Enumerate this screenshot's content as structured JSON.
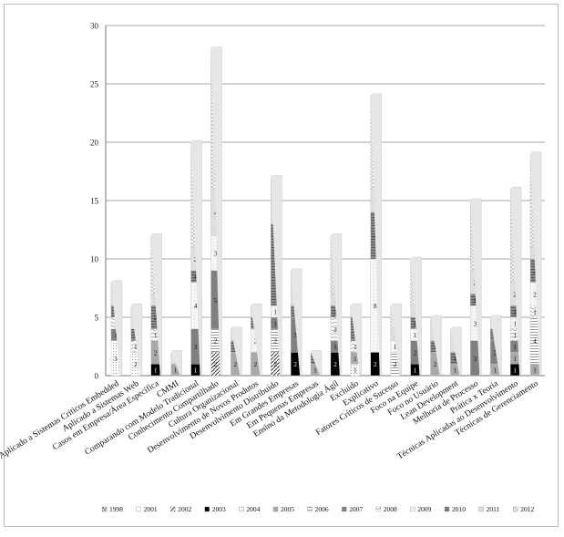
{
  "chart_data": {
    "type": "bar",
    "stacked": true,
    "title": "",
    "xlabel": "",
    "ylabel": "",
    "ylim": [
      0,
      30
    ],
    "yticks": [
      0,
      5,
      10,
      15,
      20,
      25,
      30
    ],
    "grid": true,
    "legend_position": "bottom",
    "categories": [
      "Aplicado a Sistemas Críticos Embedded",
      "Aplicado a Sistemas Web",
      "Casos em Empresa/Área Específica",
      "CMMI",
      "Comparando com Modelo Tradicional",
      "Conhecimento Compartilhado",
      "Cultura Organizacional",
      "Desenvolvimento de Novos Produtos",
      "Desenvolvimento Distribuído",
      "Em Grandes Empresas",
      "Em Pequenas Empresas",
      "Ensino da Metodologia Ágil",
      "Excluído",
      "Explicativo",
      "Fatores Críticos de Sucesso",
      "Foco na Equipe",
      "Foco no Usuário",
      "Lean Development",
      "Melhoria de Processo",
      "Prática x Teoria",
      "Técnicas Aplicadas ao Desenvolvimento",
      "Técnicas de Gerenciamento"
    ],
    "series": [
      {
        "name": "1998",
        "color": "#8c8c8c",
        "values": [
          0,
          0,
          0,
          0,
          0,
          0,
          0,
          0,
          0,
          0,
          0,
          0,
          0,
          0,
          0,
          0,
          0,
          0,
          0,
          0,
          0,
          0
        ]
      },
      {
        "name": "2001",
        "color": "#f2f2f2",
        "values": [
          0,
          0,
          0,
          0,
          0,
          0,
          0,
          0,
          0,
          0,
          0,
          0,
          0,
          0,
          0,
          0,
          0,
          0,
          0,
          0,
          0,
          0
        ]
      },
      {
        "name": "2002",
        "color": "#f0f0f0",
        "values": [
          0,
          0,
          0,
          0,
          0,
          2,
          0,
          0,
          2,
          0,
          0,
          0,
          0,
          0,
          0,
          0,
          0,
          0,
          0,
          0,
          0,
          0
        ]
      },
      {
        "name": "2003",
        "color": "#000000",
        "values": [
          0,
          0,
          1,
          0,
          1,
          0,
          0,
          0,
          0,
          2,
          0,
          2,
          0,
          2,
          0,
          1,
          0,
          0,
          0,
          0,
          1,
          0
        ]
      },
      {
        "name": "2004",
        "color": "#fafafa",
        "values": [
          3,
          2,
          0,
          0,
          0,
          0,
          0,
          0,
          0,
          0,
          0,
          0,
          1,
          0,
          0,
          0,
          0,
          0,
          0,
          0,
          0,
          0
        ]
      },
      {
        "name": "2005",
        "color": "#a6a6a6",
        "values": [
          0,
          0,
          2,
          1,
          0,
          0,
          2,
          2,
          0,
          0,
          1,
          0,
          1,
          0,
          0,
          0,
          2,
          1,
          0,
          1,
          1,
          1
        ]
      },
      {
        "name": "2006",
        "color": "#e0e0e0",
        "values": [
          0,
          0,
          0,
          0,
          0,
          2,
          0,
          0,
          2,
          0,
          0,
          0,
          0,
          0,
          2,
          0,
          0,
          0,
          0,
          0,
          0,
          4
        ]
      },
      {
        "name": "2007",
        "color": "#7f7f7f",
        "values": [
          1,
          0,
          0,
          0,
          3,
          5,
          0,
          0,
          1,
          3,
          0,
          1,
          0,
          0,
          0,
          2,
          0,
          0,
          3,
          2,
          1,
          0
        ]
      },
      {
        "name": "2008",
        "color": "#e8e8e8",
        "values": [
          1,
          1,
          1,
          0,
          0,
          0,
          0,
          0,
          0,
          0,
          0,
          2,
          1,
          0,
          0,
          0,
          0,
          0,
          0,
          0,
          1,
          1
        ]
      },
      {
        "name": "2009",
        "color": "#ffffff",
        "values": [
          0,
          0,
          0,
          0,
          4,
          3,
          0,
          2,
          1,
          0,
          0,
          0,
          0,
          8,
          1,
          1,
          0,
          0,
          3,
          0,
          1,
          2
        ]
      },
      {
        "name": "2010",
        "color": "#9a9a9a",
        "values": [
          1,
          1,
          2,
          0,
          1,
          0,
          1,
          1,
          7,
          1,
          1,
          1,
          2,
          4,
          0,
          1,
          1,
          1,
          1,
          1,
          1,
          2
        ]
      },
      {
        "name": "2011",
        "color": "#d9d9d9",
        "values": [
          1,
          2,
          1,
          1,
          2,
          4,
          1,
          1,
          2,
          2,
          0,
          1,
          1,
          2,
          1,
          1,
          2,
          2,
          2,
          1,
          2,
          1
        ]
      },
      {
        "name": "2012",
        "color": "#cfcfcf",
        "values": [
          1,
          0,
          5,
          0,
          9,
          12,
          0,
          0,
          2,
          1,
          0,
          5,
          0,
          8,
          2,
          4,
          0,
          0,
          6,
          0,
          8,
          8
        ]
      }
    ]
  }
}
